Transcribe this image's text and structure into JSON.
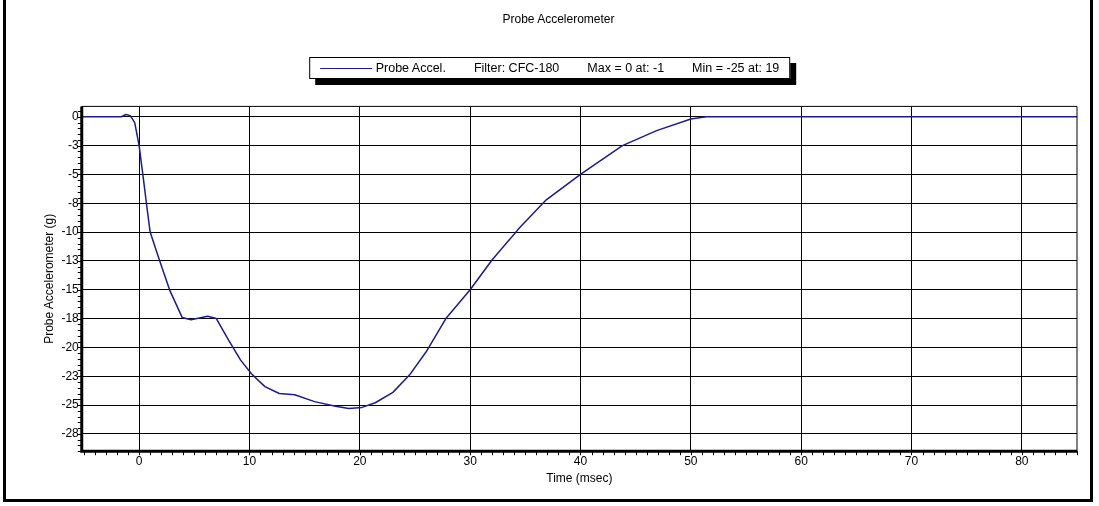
{
  "chart_data": {
    "type": "line",
    "title": "Probe Accelerometer",
    "xlabel": "Time (msec)",
    "ylabel": "Probe Accelerometer (g)",
    "annotations": [
      "Filter: CFC-180",
      "Max = 0 at: -1",
      "Min = -25 at: 19"
    ],
    "xlim": [
      -5.2,
      85
    ],
    "xticks": [
      0,
      10,
      20,
      30,
      40,
      50,
      60,
      70,
      80
    ],
    "ylim": [
      -29,
      0.9
    ],
    "yticks": [
      0,
      {
        "value": -2.5,
        "label": "-3"
      },
      -5,
      {
        "value": -7.5,
        "label": "-8"
      },
      -10,
      {
        "value": -12.5,
        "label": "-13"
      },
      -15,
      {
        "value": -17.5,
        "label": "-18"
      },
      -20,
      {
        "value": -22.5,
        "label": "-23"
      },
      -25,
      {
        "value": -27.5,
        "label": "-28"
      }
    ],
    "grid": true,
    "legend": "top",
    "marker": "none",
    "line_style": "solid",
    "series": [
      {
        "name": "Probe Accel.",
        "color": "#1c1c8c",
        "x": [
          -5.2,
          -1.6,
          -1.2,
          -0.8,
          -0.4,
          0,
          0.35,
          0.7,
          1.0,
          1.9,
          2.8,
          3.9,
          4.7,
          6.2,
          7.0,
          8.0,
          9.2,
          10.2,
          11.4,
          12.7,
          14.1,
          15.9,
          17.8,
          19.0,
          20.2,
          21.4,
          23.0,
          24.5,
          26.0,
          27.8,
          30.0,
          32.0,
          34.5,
          36.9,
          40.0,
          43.8,
          46.9,
          50.0,
          51.4,
          85
        ],
        "values": [
          0,
          0,
          0.2,
          0.1,
          -0.5,
          -2.5,
          -5.1,
          -7.8,
          -10.0,
          -12.6,
          -15.1,
          -17.4,
          -17.6,
          -17.3,
          -17.5,
          -19.2,
          -21.1,
          -22.3,
          -23.4,
          -24.0,
          -24.1,
          -24.7,
          -25.1,
          -25.3,
          -25.2,
          -24.8,
          -23.9,
          -22.4,
          -20.4,
          -17.5,
          -15.0,
          -12.4,
          -9.6,
          -7.2,
          -5.0,
          -2.5,
          -1.2,
          -0.2,
          0,
          0
        ]
      }
    ]
  }
}
